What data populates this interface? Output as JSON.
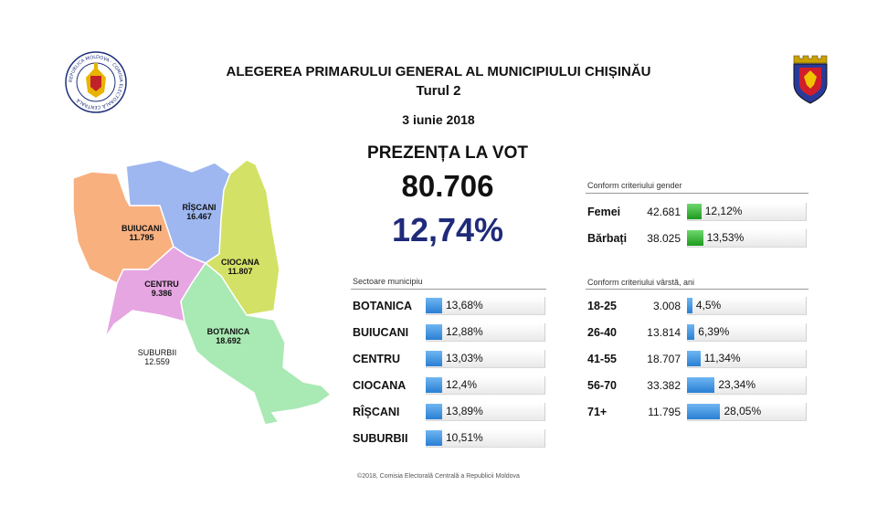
{
  "header": {
    "title": "ALEGEREA PRIMARULUI GENERAL AL MUNICIPIULUI CHIȘINĂU",
    "subtitle": "Turul 2",
    "date": "3 iunie 2018"
  },
  "turnout": {
    "label": "PREZENȚA LA VOT",
    "count": "80.706",
    "percent": "12,74%"
  },
  "logos": {
    "left": "commission-emblem",
    "left_ring_text": "REPUBLICA MOLDOVA · COMISIA ELECTORALĂ CENTRALĂ",
    "right": "chisinau-coat-of-arms"
  },
  "map": {
    "districts": [
      {
        "name": "BUIUCANI",
        "votes": "11.795",
        "color": "#f8b07f"
      },
      {
        "name": "RÎȘCANI",
        "votes": "16.467",
        "color": "#9eb7f0"
      },
      {
        "name": "CIOCANA",
        "votes": "11.807",
        "color": "#d3e166"
      },
      {
        "name": "CENTRU",
        "votes": "9.386",
        "color": "#e6a6e2"
      },
      {
        "name": "BOTANICA",
        "votes": "18.692",
        "color": "#a9e9b4"
      },
      {
        "name": "SUBURBII",
        "votes": "12.559",
        "color": "#ffffff"
      }
    ]
  },
  "sectors": {
    "heading": "Sectoare municipiu",
    "rows": [
      {
        "label": "BOTANICA",
        "pct_text": "13,68%",
        "pct": 13.68
      },
      {
        "label": "BUIUCANI",
        "pct_text": "12,88%",
        "pct": 12.88
      },
      {
        "label": "CENTRU",
        "pct_text": "13,03%",
        "pct": 13.03
      },
      {
        "label": "CIOCANA",
        "pct_text": "12,4%",
        "pct": 12.4
      },
      {
        "label": "RÎȘCANI",
        "pct_text": "13,89%",
        "pct": 13.89
      },
      {
        "label": "SUBURBII",
        "pct_text": "10,51%",
        "pct": 10.51
      }
    ]
  },
  "gender": {
    "heading": "Conform criteriului gender",
    "rows": [
      {
        "label": "Femei",
        "count": "42.681",
        "pct_text": "12,12%",
        "pct": 12.12
      },
      {
        "label": "Bărbați",
        "count": "38.025",
        "pct_text": "13,53%",
        "pct": 13.53
      }
    ]
  },
  "age": {
    "heading": "Conform criteriului vârstă, ani",
    "rows": [
      {
        "label": "18-25",
        "count": "3.008",
        "pct_text": "4,5%",
        "pct": 4.5
      },
      {
        "label": "26-40",
        "count": "13.814",
        "pct_text": "6,39%",
        "pct": 6.39
      },
      {
        "label": "41-55",
        "count": "18.707",
        "pct_text": "11,34%",
        "pct": 11.34
      },
      {
        "label": "56-70",
        "count": "33.382",
        "pct_text": "23,34%",
        "pct": 23.34
      },
      {
        "label": "71+",
        "count": "11.795",
        "pct_text": "28,05%",
        "pct": 28.05
      }
    ]
  },
  "footer": {
    "text": "©2018, Comisia Electorală Centrală a Republicii Moldova"
  }
}
